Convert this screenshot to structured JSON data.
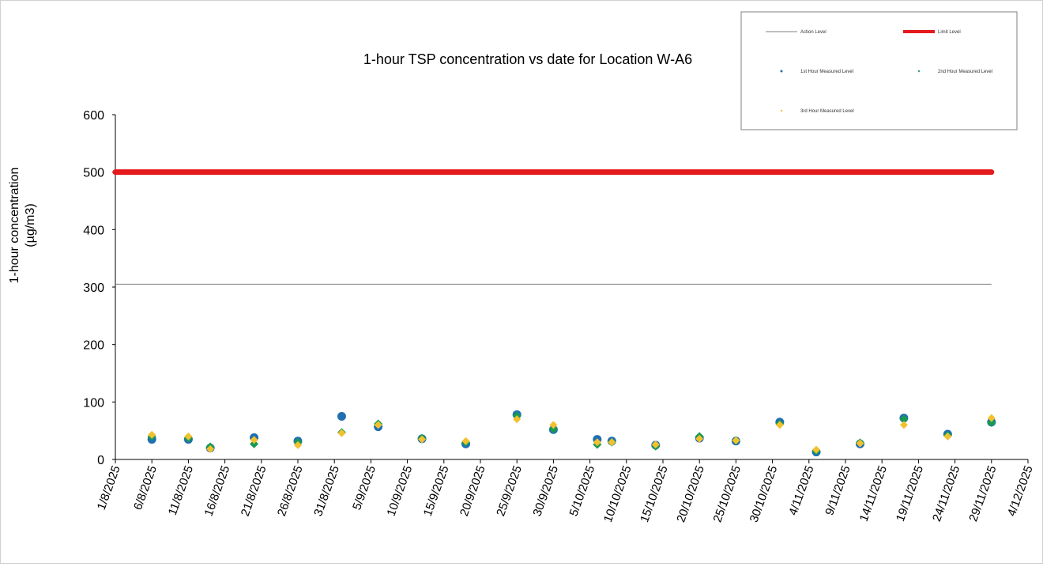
{
  "chart_data": {
    "type": "scatter",
    "title": "1-hour TSP concentration vs date for Location  W-A6",
    "ylabel_lines": [
      "1-hour concentration",
      "(µg/m3)"
    ],
    "xlabel": "",
    "ylim": [
      0,
      600
    ],
    "yticks": [
      0,
      100,
      200,
      300,
      400,
      500,
      600
    ],
    "xticks": [
      "1/8/2025",
      "6/8/2025",
      "11/8/2025",
      "16/8/2025",
      "21/8/2025",
      "26/8/2025",
      "31/8/2025",
      "5/9/2025",
      "10/9/2025",
      "15/9/2025",
      "20/9/2025",
      "25/9/2025",
      "30/9/2025",
      "5/10/2025",
      "10/10/2025",
      "15/10/2025",
      "20/10/2025",
      "25/10/2025",
      "30/10/2025",
      "4/11/2025",
      "9/11/2025",
      "14/11/2025",
      "19/11/2025",
      "24/11/2025",
      "29/11/2025",
      "4/12/2025"
    ],
    "xlim": [
      "2025-08-01",
      "2025-12-04"
    ],
    "grid": false,
    "legend_position": "top-right",
    "reference_lines": [
      {
        "name": "Action Level",
        "value": 305,
        "color": "#808080",
        "from": "2025-08-01",
        "to": "2025-11-29"
      },
      {
        "name": "Limit Level",
        "value": 500,
        "color": "#e41a1c",
        "from": "2025-08-01",
        "to": "2025-11-29"
      }
    ],
    "series": [
      {
        "name": "1st Hour Measured Level",
        "marker": "circle",
        "color": "#1f6fb2",
        "points": [
          {
            "x": "2025-08-06",
            "y": 35
          },
          {
            "x": "2025-08-11",
            "y": 35
          },
          {
            "x": "2025-08-14",
            "y": 20
          },
          {
            "x": "2025-08-20",
            "y": 38
          },
          {
            "x": "2025-08-26",
            "y": 32
          },
          {
            "x": "2025-09-01",
            "y": 75
          },
          {
            "x": "2025-09-06",
            "y": 57
          },
          {
            "x": "2025-09-12",
            "y": 36
          },
          {
            "x": "2025-09-18",
            "y": 27
          },
          {
            "x": "2025-09-25",
            "y": 78
          },
          {
            "x": "2025-09-30",
            "y": 52
          },
          {
            "x": "2025-10-06",
            "y": 35
          },
          {
            "x": "2025-10-08",
            "y": 32
          },
          {
            "x": "2025-10-14",
            "y": 25
          },
          {
            "x": "2025-10-20",
            "y": 37
          },
          {
            "x": "2025-10-25",
            "y": 32
          },
          {
            "x": "2025-10-31",
            "y": 65
          },
          {
            "x": "2025-11-05",
            "y": 13
          },
          {
            "x": "2025-11-11",
            "y": 27
          },
          {
            "x": "2025-11-17",
            "y": 72
          },
          {
            "x": "2025-11-23",
            "y": 44
          },
          {
            "x": "2025-11-29",
            "y": 65
          }
        ]
      },
      {
        "name": "2nd Hour Measured Level",
        "marker": "diamond",
        "color": "#1a9a50",
        "points": [
          {
            "x": "2025-08-06",
            "y": 40
          },
          {
            "x": "2025-08-11",
            "y": 37
          },
          {
            "x": "2025-08-14",
            "y": 22
          },
          {
            "x": "2025-08-20",
            "y": 27
          },
          {
            "x": "2025-08-26",
            "y": 30
          },
          {
            "x": "2025-09-01",
            "y": 47
          },
          {
            "x": "2025-09-06",
            "y": 62
          },
          {
            "x": "2025-09-12",
            "y": 37
          },
          {
            "x": "2025-09-18",
            "y": 30
          },
          {
            "x": "2025-09-25",
            "y": 76
          },
          {
            "x": "2025-09-30",
            "y": 53
          },
          {
            "x": "2025-10-06",
            "y": 26
          },
          {
            "x": "2025-10-08",
            "y": 30
          },
          {
            "x": "2025-10-14",
            "y": 23
          },
          {
            "x": "2025-10-20",
            "y": 40
          },
          {
            "x": "2025-10-25",
            "y": 33
          },
          {
            "x": "2025-10-31",
            "y": 62
          },
          {
            "x": "2025-11-05",
            "y": 15
          },
          {
            "x": "2025-11-11",
            "y": 29
          },
          {
            "x": "2025-11-17",
            "y": 70
          },
          {
            "x": "2025-11-23",
            "y": 42
          },
          {
            "x": "2025-11-29",
            "y": 64
          }
        ]
      },
      {
        "name": "3rd Hour Measured Level",
        "marker": "diamond",
        "color": "#f2c12e",
        "points": [
          {
            "x": "2025-08-06",
            "y": 43
          },
          {
            "x": "2025-08-11",
            "y": 40
          },
          {
            "x": "2025-08-14",
            "y": 18
          },
          {
            "x": "2025-08-20",
            "y": 34
          },
          {
            "x": "2025-08-26",
            "y": 25
          },
          {
            "x": "2025-09-01",
            "y": 46
          },
          {
            "x": "2025-09-06",
            "y": 60
          },
          {
            "x": "2025-09-12",
            "y": 35
          },
          {
            "x": "2025-09-18",
            "y": 32
          },
          {
            "x": "2025-09-25",
            "y": 70
          },
          {
            "x": "2025-09-30",
            "y": 60
          },
          {
            "x": "2025-10-06",
            "y": 30
          },
          {
            "x": "2025-10-08",
            "y": 30
          },
          {
            "x": "2025-10-14",
            "y": 26
          },
          {
            "x": "2025-10-20",
            "y": 36
          },
          {
            "x": "2025-10-25",
            "y": 33
          },
          {
            "x": "2025-10-31",
            "y": 60
          },
          {
            "x": "2025-11-05",
            "y": 17
          },
          {
            "x": "2025-11-11",
            "y": 28
          },
          {
            "x": "2025-11-17",
            "y": 60
          },
          {
            "x": "2025-11-23",
            "y": 40
          },
          {
            "x": "2025-11-29",
            "y": 72
          }
        ]
      }
    ]
  }
}
